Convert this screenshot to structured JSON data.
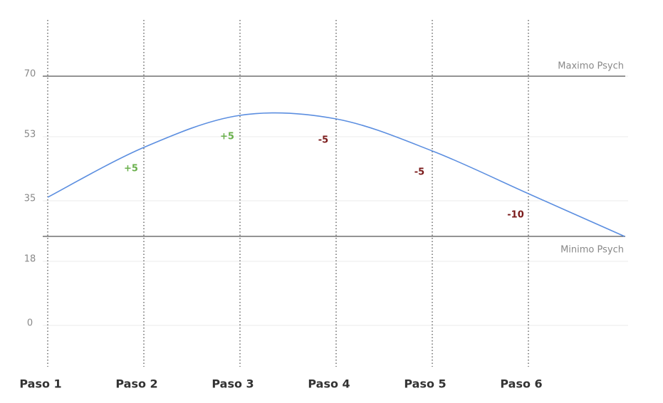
{
  "chart_data": {
    "type": "line",
    "categories": [
      "Paso 1",
      "Paso 2",
      "Paso 3",
      "Paso 4",
      "Paso 5",
      "Paso 6",
      null
    ],
    "values": [
      36,
      50,
      59,
      58,
      49,
      37,
      25
    ],
    "color": "#5b8ee0",
    "ylim": [
      -10,
      80
    ],
    "yticks": [
      0,
      18,
      35,
      53,
      70
    ],
    "grid": true,
    "reference_lines": [
      {
        "label": "Maximo Psych",
        "value": 70,
        "color": "#555555",
        "label_side": "above"
      },
      {
        "label": "Minimo Psych",
        "value": 25,
        "color": "#555555",
        "label_side": "below"
      }
    ],
    "annotations": [
      {
        "text": "+5",
        "category": "Paso 2",
        "color": "#6ab04c"
      },
      {
        "text": "+5",
        "category": "Paso 3",
        "color": "#6ab04c"
      },
      {
        "text": "-5",
        "category": "Paso 4",
        "color": "#7a1a1a"
      },
      {
        "text": "-5",
        "category": "Paso 5",
        "color": "#7a1a1a"
      },
      {
        "text": "-10",
        "category": "Paso 6",
        "color": "#7a1a1a"
      }
    ]
  }
}
